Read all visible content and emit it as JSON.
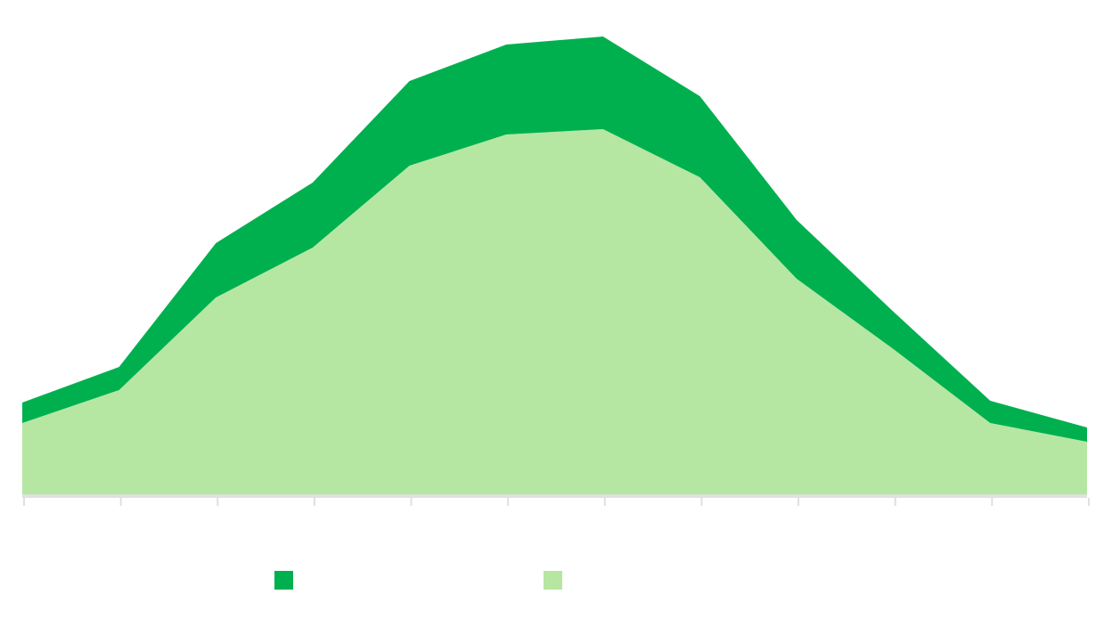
{
  "chart_data": {
    "type": "stacked_area",
    "categories": [
      null,
      null,
      null,
      null,
      null,
      null,
      null,
      null,
      null,
      null,
      null,
      null
    ],
    "series": [
      {
        "color": "#00b04f",
        "values": [
          23,
          26,
          61,
          73,
          95,
          101,
          104,
          91,
          66,
          42,
          25,
          16
        ]
      },
      {
        "color": "#b6e7a2",
        "values": [
          80,
          117,
          221,
          277,
          369,
          404,
          410,
          356,
          242,
          163,
          80,
          59
        ]
      }
    ],
    "ylim": [
      0,
      520
    ],
    "legend": "bottom"
  }
}
